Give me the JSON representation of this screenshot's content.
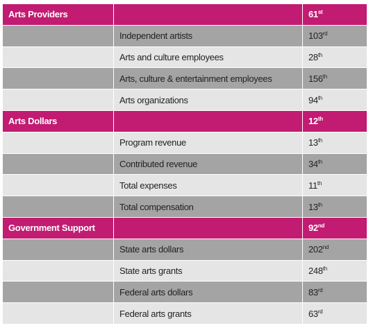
{
  "sections": [
    {
      "title": "Arts Providers",
      "rank": "61",
      "suffix": "st",
      "rows": [
        {
          "label": "Independent artists",
          "rank": "103",
          "suffix": "rd"
        },
        {
          "label": "Arts and culture employees",
          "rank": "28",
          "suffix": "th"
        },
        {
          "label": "Arts, culture & entertainment employees",
          "rank": "156",
          "suffix": "th"
        },
        {
          "label": "Arts organizations",
          "rank": "94",
          "suffix": "th"
        }
      ]
    },
    {
      "title": "Arts Dollars",
      "rank": "12",
      "suffix": "th",
      "rows": [
        {
          "label": "Program revenue",
          "rank": "13",
          "suffix": "th"
        },
        {
          "label": "Contributed revenue",
          "rank": "34",
          "suffix": "th"
        },
        {
          "label": "Total expenses",
          "rank": "11",
          "suffix": "th"
        },
        {
          "label": "Total compensation",
          "rank": "13",
          "suffix": "th"
        }
      ]
    },
    {
      "title": "Government Support",
      "rank": "92",
      "suffix": "nd",
      "rows": [
        {
          "label": "State arts dollars",
          "rank": "202",
          "suffix": "nd"
        },
        {
          "label": "State arts grants",
          "rank": "248",
          "suffix": "th"
        },
        {
          "label": "Federal arts dollars",
          "rank": "83",
          "suffix": "rd"
        },
        {
          "label": "Federal arts grants",
          "rank": "63",
          "suffix": "rd"
        }
      ]
    }
  ]
}
